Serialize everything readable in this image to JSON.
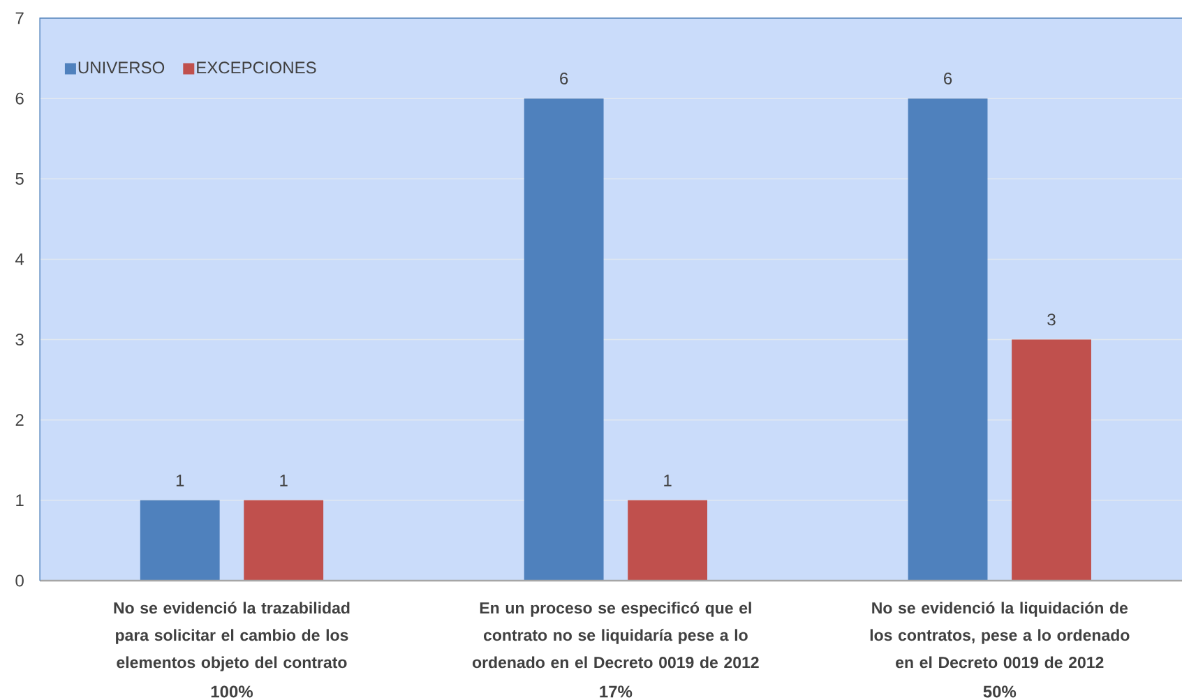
{
  "chart_data": {
    "type": "bar",
    "categories": [
      "No se evidenció la trazabilidad  para solicitar el cambio de los elementos objeto del contrato",
      "En un proceso se especificó que el contrato no se liquidaría pese a lo ordenado en el Decreto 0019 de 2012",
      "No se evidenció la liquidación de los contratos, pese a lo ordenado en el Decreto 0019 de 2012"
    ],
    "series": [
      {
        "name": "UNIVERSO",
        "color": "#4f81bd",
        "values": [
          1,
          6,
          6
        ]
      },
      {
        "name": "EXCEPCIONES",
        "color": "#c0504d",
        "values": [
          1,
          1,
          3
        ]
      }
    ],
    "annotations": [
      "100%",
      "17%",
      "50%"
    ],
    "ylim": [
      0,
      7
    ],
    "yticks": [
      0,
      1,
      2,
      3,
      4,
      5,
      6,
      7
    ],
    "grid": "y",
    "legend": "top left",
    "data_labels": true
  }
}
